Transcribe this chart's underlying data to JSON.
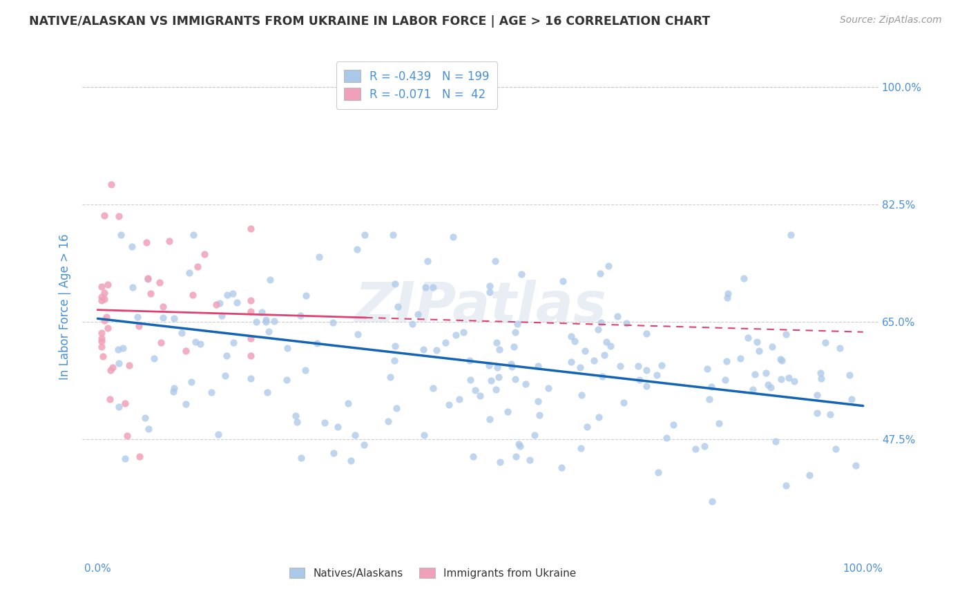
{
  "title": "NATIVE/ALASKAN VS IMMIGRANTS FROM UKRAINE IN LABOR FORCE | AGE > 16 CORRELATION CHART",
  "source": "Source: ZipAtlas.com",
  "ylabel": "In Labor Force | Age > 16",
  "x_tick_labels": [
    "0.0%",
    "100.0%"
  ],
  "y_tick_labels": [
    "47.5%",
    "65.0%",
    "82.5%",
    "100.0%"
  ],
  "y_tick_values": [
    0.475,
    0.65,
    0.825,
    1.0
  ],
  "watermark": "ZIPatlas",
  "blue_color": "#aac8e8",
  "pink_color": "#f0a0b8",
  "blue_line_color": "#1464b4",
  "pink_line_color": "#e04070",
  "scatter_size": 55,
  "grid_color": "#c8c8c8",
  "background_color": "#ffffff",
  "title_color": "#333333",
  "axis_label_color": "#4a90d9",
  "blue_N": 199,
  "pink_N": 42,
  "blue_intercept": 0.655,
  "blue_slope": -0.13,
  "pink_intercept": 0.668,
  "pink_slope": -0.033,
  "xlim_min": -0.02,
  "xlim_max": 1.02,
  "ylim_min": 0.295,
  "ylim_max": 1.05
}
